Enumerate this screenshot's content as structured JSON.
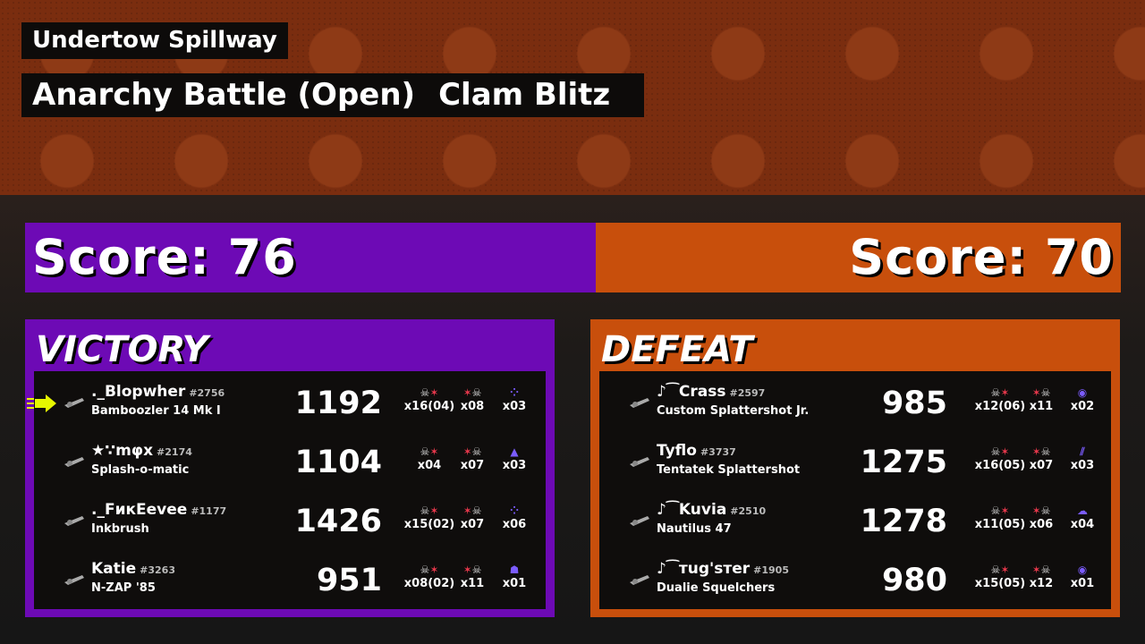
{
  "header": {
    "stage": "Undertow Spillway",
    "mode": "Anarchy Battle (Open)",
    "rule": "Clam Blitz"
  },
  "colors": {
    "alpha": "#6d0ab5",
    "bravo": "#c84f0c"
  },
  "teams": [
    {
      "score_label": "Score: 76",
      "result": "VICTORY",
      "players": [
        {
          "name": "._Blopwher",
          "tag": "#2756",
          "weapon": "Bamboozler 14 Mk I",
          "points": "1192",
          "kills": "x16(04)",
          "deaths": "x08",
          "specials": "x03",
          "self": true,
          "special_icon": "booyah-bomb-icon"
        },
        {
          "name": "★∵mφx",
          "tag": "#2174",
          "weapon": "Splash-o-matic",
          "points": "1104",
          "kills": "x04",
          "deaths": "x07",
          "specials": "x03",
          "special_icon": "crab-tank-icon"
        },
        {
          "name": "._FикEevee",
          "tag": "#1177",
          "weapon": "Inkbrush",
          "points": "1426",
          "kills": "x15(02)",
          "deaths": "x07",
          "specials": "x06",
          "special_icon": "booyah-bomb-icon"
        },
        {
          "name": "Katie",
          "tag": "#3263",
          "weapon": "N-ZAP '85",
          "points": "951",
          "kills": "x08(02)",
          "deaths": "x11",
          "specials": "x01",
          "special_icon": "tacticooler-icon"
        }
      ]
    },
    {
      "score_label": "Score: 70",
      "result": "DEFEAT",
      "players": [
        {
          "name": "♪⁀Crass",
          "tag": "#2597",
          "weapon": "Custom Splattershot Jr.",
          "points": "985",
          "kills": "x12(06)",
          "deaths": "x11",
          "specials": "x02",
          "special_icon": "wave-breaker-icon"
        },
        {
          "name": "Tyflo",
          "tag": "#3737",
          "weapon": "Tentatek Splattershot",
          "points": "1275",
          "kills": "x16(05)",
          "deaths": "x07",
          "specials": "x03",
          "special_icon": "triple-inkstrike-icon"
        },
        {
          "name": "♪⁀Kuvia",
          "tag": "#2510",
          "weapon": "Nautilus 47",
          "points": "1278",
          "kills": "x11(05)",
          "deaths": "x06",
          "specials": "x04",
          "special_icon": "ink-storm-icon"
        },
        {
          "name": "♪⁀тug'sтer",
          "tag": "#1905",
          "weapon": "Dualie Squelchers",
          "points": "980",
          "kills": "x15(05)",
          "deaths": "x12",
          "specials": "x01",
          "special_icon": "wave-breaker-icon"
        }
      ]
    }
  ]
}
